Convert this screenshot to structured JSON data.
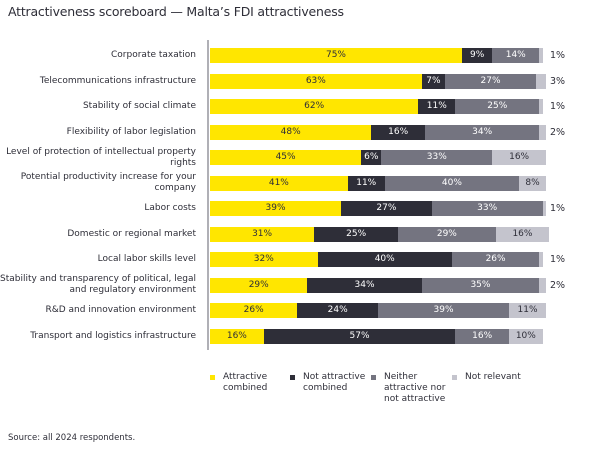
{
  "chart_data": {
    "type": "bar",
    "orientation": "horizontal",
    "stacked": true,
    "title": "Attractiveness scoreboard — Malta’s FDI attractiveness",
    "xlabel": "",
    "ylabel": "",
    "xlim": [
      0,
      100
    ],
    "unit": "%",
    "grid": false,
    "legend_position": "bottom",
    "categories": [
      "Corporate taxation",
      "Telecommunications infrastructure",
      "Stability of social climate",
      "Flexibility of labor legislation",
      "Level of protection of intellectual property rights",
      "Potential productivity increase for your company",
      "Labor costs",
      "Domestic or regional market",
      "Local labor skills level",
      "Stability and transparency of political, legal and regulatory environment",
      "R&D and innovation environment",
      "Transport and logistics infrastructure"
    ],
    "series": [
      {
        "name": "Attractive combined",
        "color": "#ffe600",
        "text_color": "#2e2e38",
        "values": [
          75,
          63,
          62,
          48,
          45,
          41,
          39,
          31,
          32,
          29,
          26,
          16
        ]
      },
      {
        "name": "Not attractive combined",
        "color": "#2e2e38",
        "text_color": "#ffffff",
        "values": [
          9,
          7,
          11,
          16,
          6,
          11,
          27,
          25,
          40,
          34,
          24,
          57
        ]
      },
      {
        "name": "Neither attractive nor not attractive",
        "color": "#747480",
        "text_color": "#ffffff",
        "values": [
          14,
          27,
          25,
          34,
          33,
          40,
          33,
          29,
          26,
          35,
          39,
          16
        ]
      },
      {
        "name": "Not relevant",
        "color": "#c4c4cd",
        "text_color": "#2e2e38",
        "values": [
          1,
          3,
          1,
          2,
          16,
          8,
          1,
          16,
          1,
          2,
          11,
          10
        ]
      }
    ],
    "legend": [
      {
        "label_lines": [
          "Attractive",
          "combined"
        ]
      },
      {
        "label_lines": [
          "Not attractive",
          "combined"
        ]
      },
      {
        "label_lines": [
          "Neither",
          "attractive nor",
          "not attractive"
        ]
      },
      {
        "label_lines": [
          "Not relevant"
        ]
      }
    ],
    "source": "Source: all 2024 respondents."
  }
}
